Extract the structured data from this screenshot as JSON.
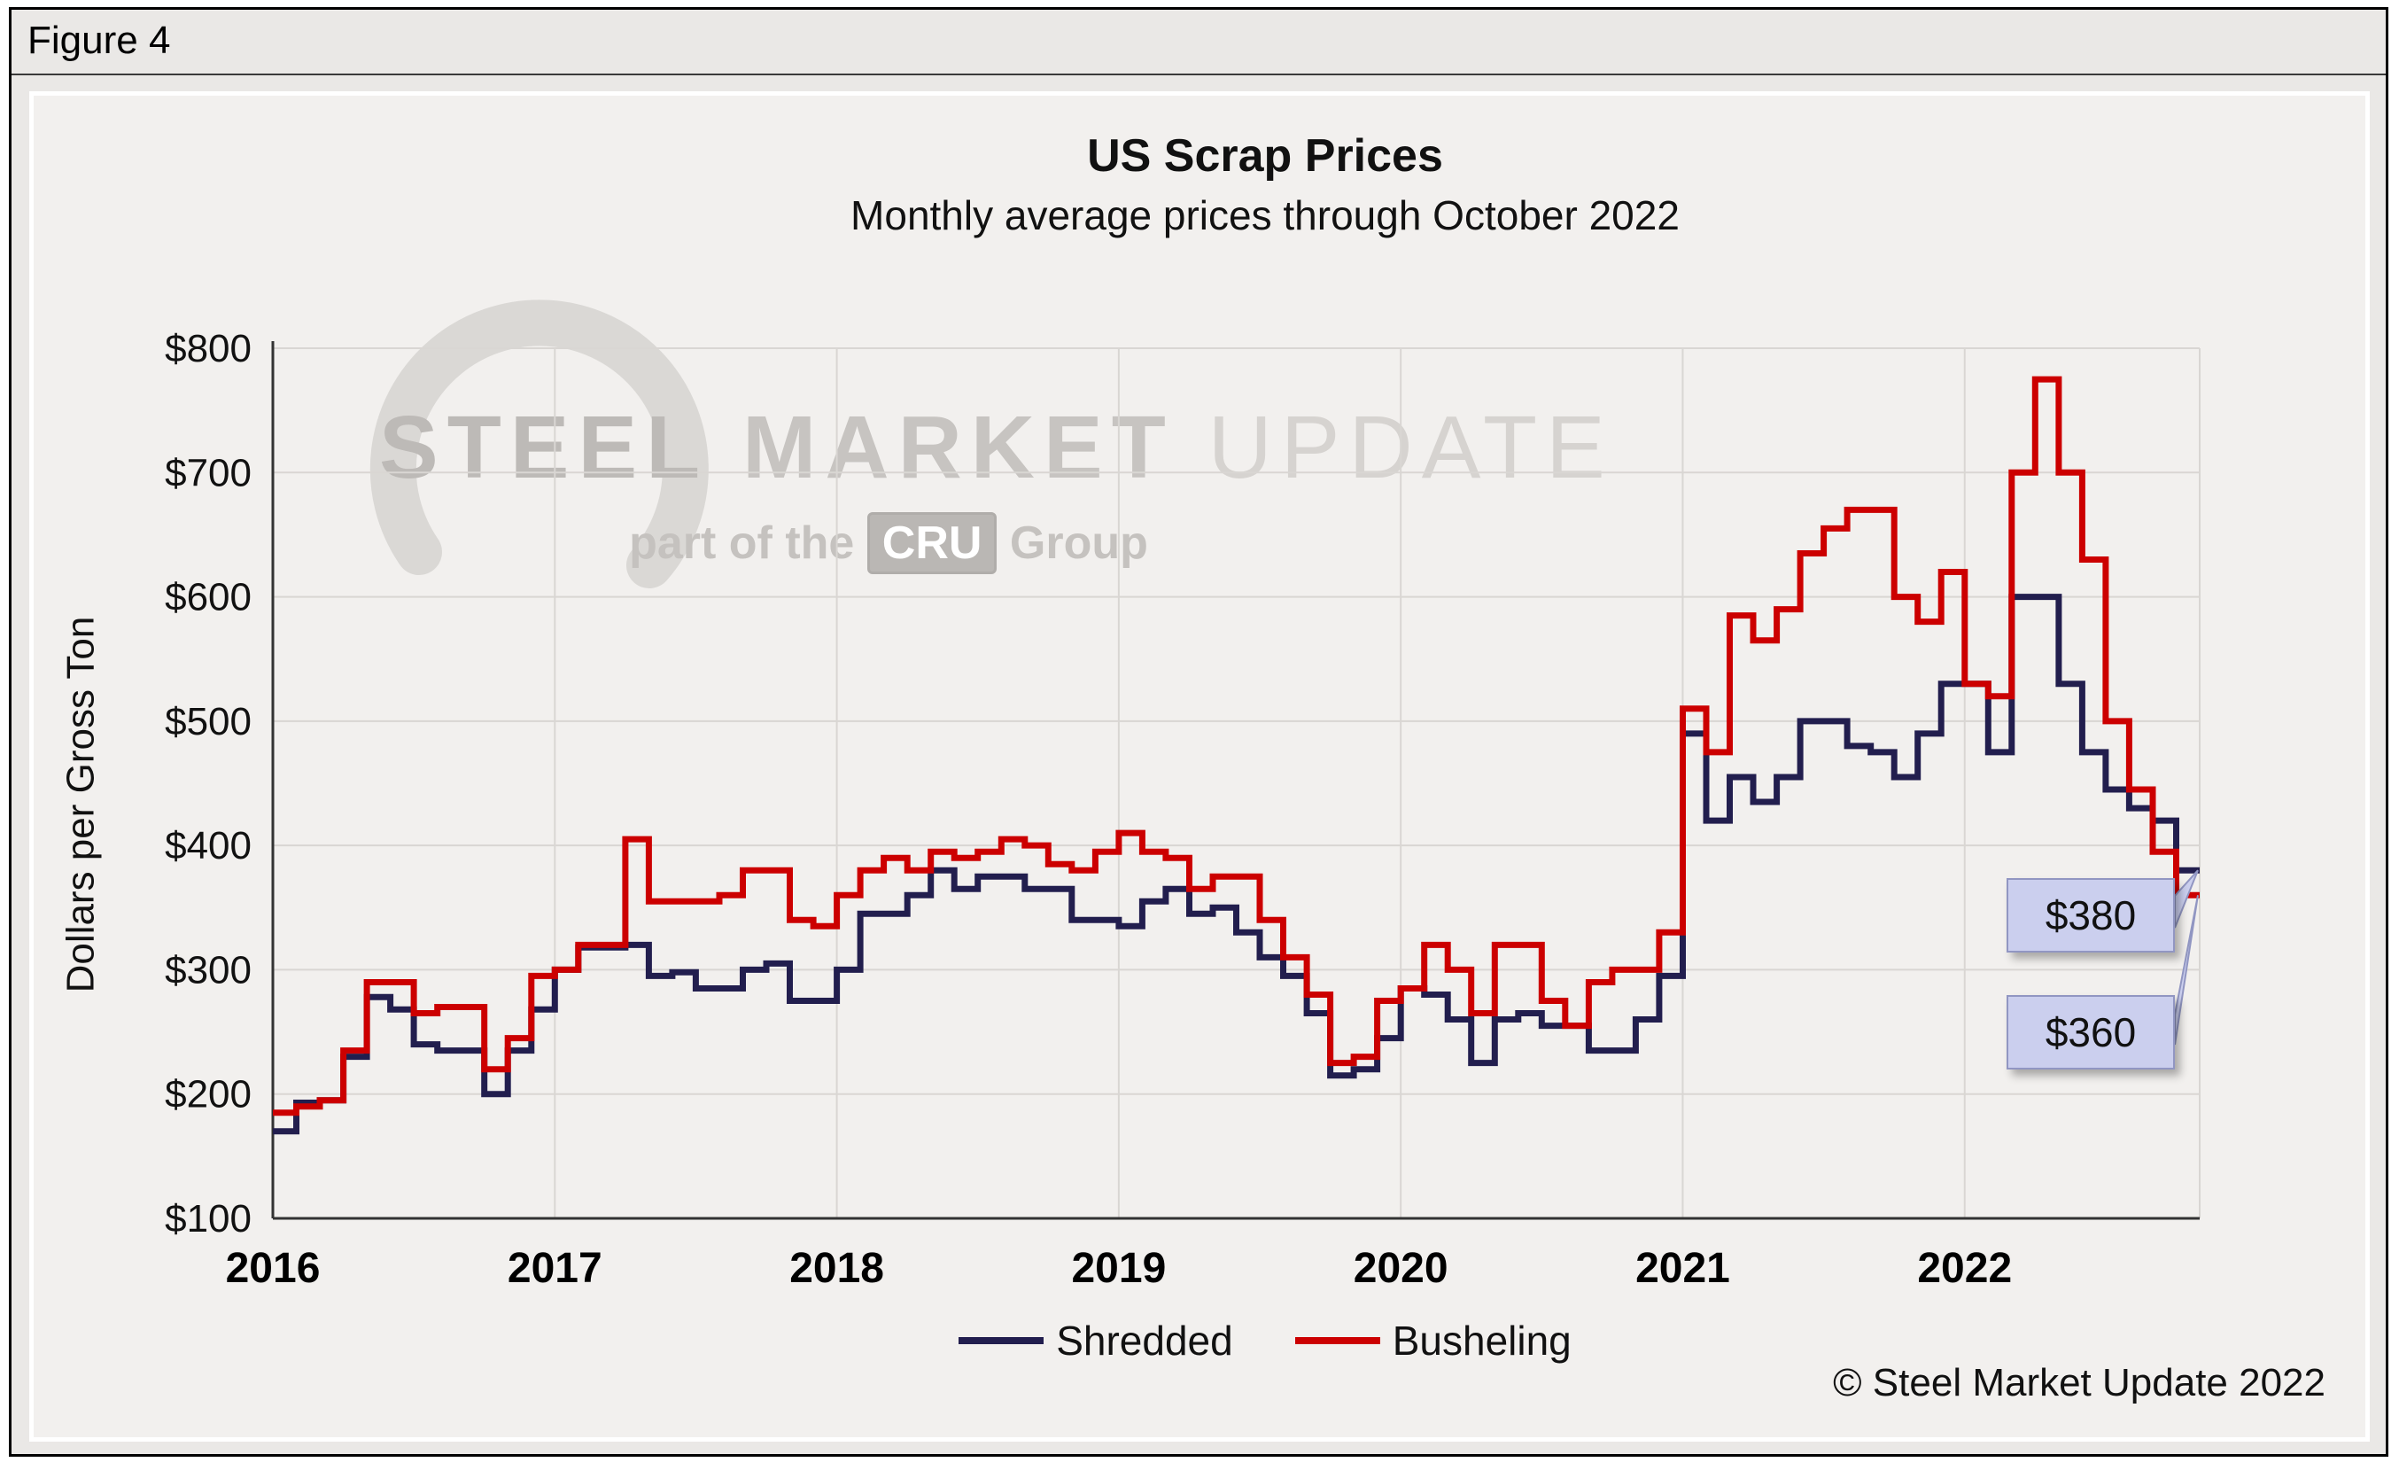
{
  "figure_label": "Figure 4",
  "header": {
    "title": "US Scrap Prices",
    "subtitle": "Monthly average prices through October 2022"
  },
  "y_axis_title": "Dollars per  Gross Ton",
  "legend": [
    {
      "label": "Shredded",
      "color": "#221e4e"
    },
    {
      "label": "Busheling",
      "color": "#cc0000"
    }
  ],
  "callouts": [
    {
      "label": "$380",
      "series": "Shredded"
    },
    {
      "label": "$360",
      "series": "Busheling"
    }
  ],
  "watermark": {
    "steel": "STEEL",
    "market": " MARKET",
    "update": " UPDATE",
    "part_prefix": "part of the ",
    "cru": "CRU",
    "part_suffix": " Group"
  },
  "copyright": "© Steel Market Update 2022",
  "colors": {
    "shredded": "#221e4e",
    "busheling": "#cc0000",
    "grid": "#d9d6d3",
    "axis": "#333333",
    "panel_bg": "#f2f0ee",
    "page_bg": "#eae8e6",
    "callout_bg": "#cbcfee",
    "callout_border": "#9196c2"
  },
  "chart_data": {
    "type": "line",
    "title": "US Scrap Prices",
    "subtitle": "Monthly average prices through October 2022",
    "ylabel": "Dollars per Gross Ton",
    "ylim": [
      100,
      800
    ],
    "y_ticks": [
      "$100",
      "$200",
      "$300",
      "$400",
      "$500",
      "$600",
      "$700",
      "$800"
    ],
    "x_tick_labels": [
      "2016",
      "2017",
      "2018",
      "2019",
      "2020",
      "2021",
      "2022"
    ],
    "x_start": "2016-01",
    "x_end": "2022-10",
    "grid": true,
    "legend_position": "bottom",
    "series": [
      {
        "name": "Shredded",
        "color": "#221e4e",
        "values": [
          170,
          193,
          195,
          230,
          278,
          268,
          240,
          235,
          235,
          200,
          235,
          268,
          300,
          318,
          318,
          320,
          295,
          298,
          285,
          285,
          300,
          305,
          275,
          275,
          300,
          345,
          345,
          360,
          380,
          365,
          375,
          375,
          365,
          365,
          340,
          340,
          335,
          355,
          365,
          345,
          350,
          330,
          310,
          295,
          265,
          215,
          220,
          245,
          285,
          280,
          260,
          225,
          260,
          265,
          255,
          255,
          235,
          235,
          260,
          295,
          490,
          420,
          455,
          435,
          455,
          500,
          500,
          480,
          475,
          455,
          490,
          530,
          530,
          475,
          600,
          600,
          530,
          475,
          445,
          430,
          420,
          380
        ]
      },
      {
        "name": "Busheling",
        "color": "#cc0000",
        "values": [
          185,
          190,
          195,
          235,
          290,
          290,
          265,
          270,
          270,
          220,
          245,
          295,
          300,
          320,
          320,
          405,
          355,
          355,
          355,
          360,
          380,
          380,
          340,
          335,
          360,
          380,
          390,
          380,
          395,
          390,
          395,
          405,
          400,
          385,
          380,
          395,
          410,
          395,
          390,
          365,
          375,
          375,
          340,
          310,
          280,
          225,
          230,
          275,
          285,
          320,
          300,
          265,
          320,
          320,
          275,
          255,
          290,
          300,
          300,
          330,
          510,
          475,
          585,
          565,
          590,
          635,
          655,
          670,
          670,
          600,
          580,
          620,
          530,
          520,
          700,
          775,
          700,
          630,
          500,
          445,
          395,
          360
        ]
      }
    ]
  }
}
